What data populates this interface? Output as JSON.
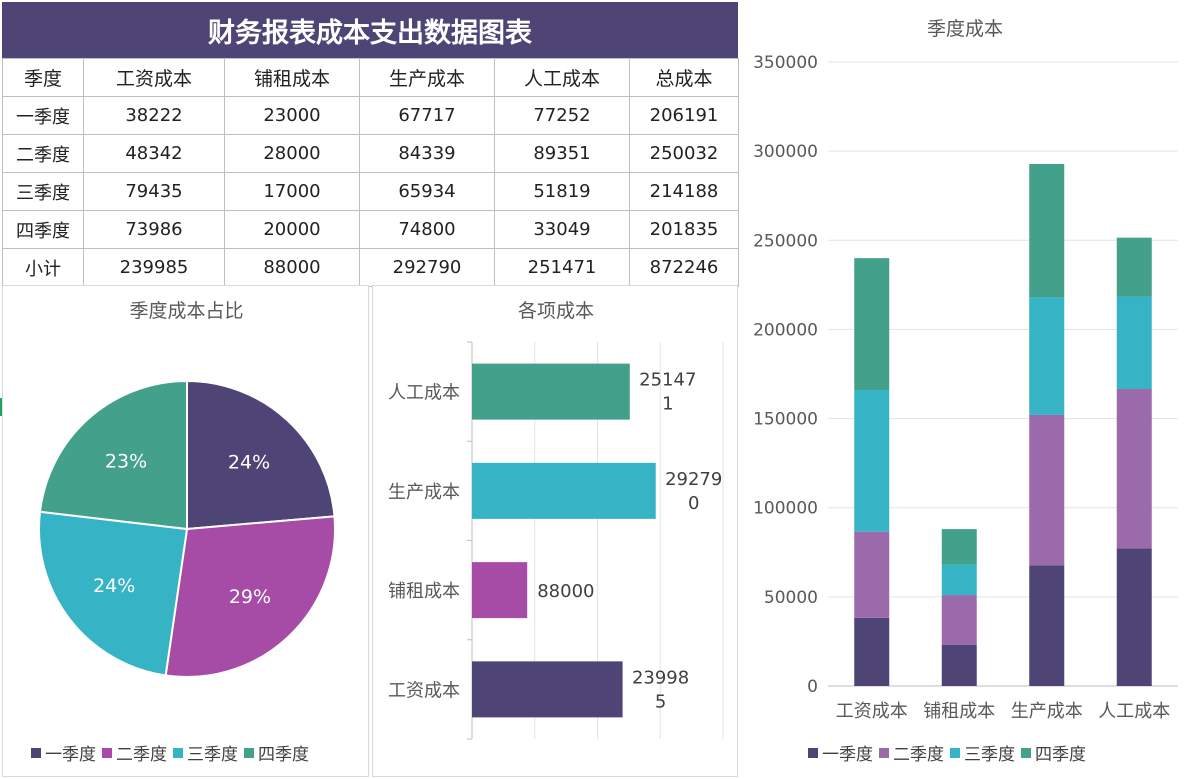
{
  "report": {
    "title": "财务报表成本支出数据图表",
    "headers": [
      "季度",
      "工资成本",
      "铺租成本",
      "生产成本",
      "人工成本",
      "总成本"
    ],
    "rows": [
      [
        "一季度",
        "38222",
        "23000",
        "67717",
        "77252",
        "206191"
      ],
      [
        "二季度",
        "48342",
        "28000",
        "84339",
        "89351",
        "250032"
      ],
      [
        "三季度",
        "79435",
        "17000",
        "65934",
        "51819",
        "214188"
      ],
      [
        "四季度",
        "73986",
        "20000",
        "74800",
        "33049",
        "201835"
      ],
      [
        "小计",
        "239985",
        "88000",
        "292790",
        "251471",
        "872246"
      ]
    ]
  },
  "colors": {
    "一季度": "#4e4475",
    "二季度": "#a64ca6",
    "三季度": "#36b3c4",
    "四季度": "#43a08a",
    "stack_二季度": "#9b6aab",
    "header_bg": "#4e4475"
  },
  "chart_data": [
    {
      "type": "pie",
      "title": "季度成本占比",
      "categories": [
        "一季度",
        "二季度",
        "三季度",
        "四季度"
      ],
      "values": [
        206191,
        250032,
        214188,
        201835
      ],
      "data_labels": [
        "24%",
        "29%",
        "24%",
        "23%"
      ],
      "legend": "bottom"
    },
    {
      "type": "bar",
      "orientation": "horizontal",
      "title": "各项成本",
      "categories": [
        "人工成本",
        "生产成本",
        "铺租成本",
        "工资成本"
      ],
      "values": [
        251471,
        292790,
        88000,
        239985
      ],
      "data_labels": [
        [
          "25147",
          "1"
        ],
        [
          "29279",
          "0"
        ],
        [
          "88000"
        ],
        [
          "23998",
          "5"
        ]
      ],
      "xlim": [
        0,
        400000
      ]
    },
    {
      "type": "bar",
      "stacked": true,
      "title": "季度成本",
      "categories": [
        "工资成本",
        "铺租成本",
        "生产成本",
        "人工成本"
      ],
      "series": [
        {
          "name": "一季度",
          "values": [
            38222,
            23000,
            67717,
            77252
          ]
        },
        {
          "name": "二季度",
          "values": [
            48342,
            28000,
            84339,
            89351
          ]
        },
        {
          "name": "三季度",
          "values": [
            79435,
            17000,
            65934,
            51819
          ]
        },
        {
          "name": "四季度",
          "values": [
            73986,
            20000,
            74800,
            33049
          ]
        }
      ],
      "ylim": [
        0,
        350000
      ],
      "yticks": [
        "0",
        "50000",
        "100000",
        "150000",
        "200000",
        "250000",
        "300000",
        "350000"
      ],
      "legend": "bottom"
    }
  ]
}
